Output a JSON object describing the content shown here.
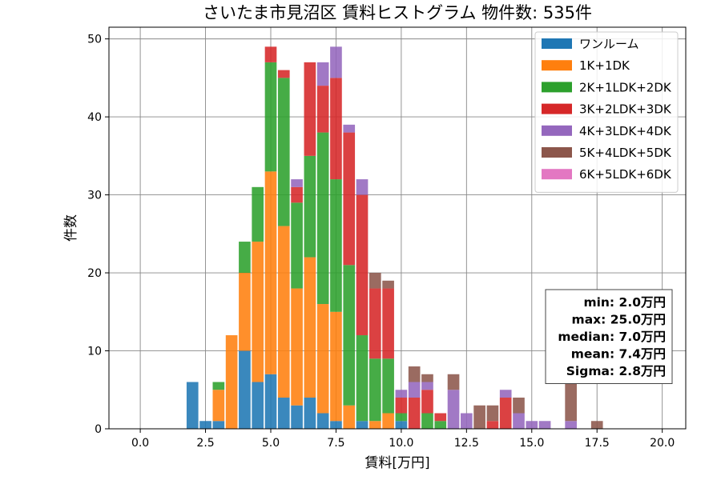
{
  "chart_data": {
    "type": "bar",
    "stacked": true,
    "title": "さいたま市見沼区 賃料ヒストグラム 物件数: 535件",
    "xlabel": "賃料[万円]",
    "ylabel": "件数",
    "xlim": [
      -1.2,
      20.9
    ],
    "ylim": [
      0,
      51.5
    ],
    "x_ticks": [
      0,
      2.5,
      5,
      7.5,
      10,
      12.5,
      15,
      17.5,
      20
    ],
    "x_tick_labels": [
      "0.0",
      "2.5",
      "5.0",
      "7.5",
      "10.0",
      "12.5",
      "15.0",
      "17.5",
      "20.0"
    ],
    "y_ticks": [
      0,
      10,
      20,
      30,
      40,
      50
    ],
    "y_tick_labels": [
      "0",
      "10",
      "20",
      "30",
      "40",
      "50"
    ],
    "grid": true,
    "legend_position": "top-right",
    "bin_width": 0.5,
    "x": [
      2.0,
      2.5,
      3.0,
      3.5,
      4.0,
      4.5,
      5.0,
      5.5,
      6.0,
      6.5,
      7.0,
      7.5,
      8.0,
      8.5,
      9.0,
      9.5,
      10.0,
      10.5,
      11.0,
      11.5,
      12.0,
      12.5,
      13.0,
      13.5,
      14.0,
      14.5,
      15.0,
      15.5,
      16.0,
      16.5,
      17.0,
      17.5
    ],
    "series": [
      {
        "name": "ワンルーム",
        "color": "#1f77b4",
        "values": [
          6,
          1,
          1,
          0,
          10,
          6,
          7,
          4,
          3,
          4,
          2,
          1,
          0,
          1,
          0,
          0,
          1,
          0,
          0,
          0,
          0,
          0,
          0,
          0,
          0,
          0,
          0,
          0,
          0,
          0,
          0,
          0
        ]
      },
      {
        "name": "1K+1DK",
        "color": "#ff7f0e",
        "values": [
          0,
          0,
          4,
          12,
          10,
          18,
          26,
          22,
          15,
          18,
          14,
          14,
          3,
          0,
          1,
          2,
          0,
          0,
          0,
          0,
          0,
          0,
          0,
          0,
          0,
          0,
          0,
          0,
          0,
          0,
          0,
          0
        ]
      },
      {
        "name": "2K+1LDK+2DK",
        "color": "#2ca02c",
        "values": [
          0,
          0,
          1,
          0,
          4,
          7,
          14,
          19,
          11,
          13,
          22,
          17,
          18,
          11,
          8,
          7,
          1,
          0,
          2,
          1,
          0,
          0,
          0,
          0,
          0,
          0,
          0,
          0,
          0,
          0,
          0,
          0
        ]
      },
      {
        "name": "3K+2LDK+3DK",
        "color": "#d62728",
        "values": [
          0,
          0,
          0,
          0,
          0,
          0,
          2,
          1,
          2,
          12,
          6,
          13,
          17,
          18,
          9,
          9,
          2,
          4,
          3,
          1,
          0,
          0,
          0,
          1,
          4,
          0,
          0,
          0,
          0,
          0,
          0,
          0
        ]
      },
      {
        "name": "4K+3LDK+4DK",
        "color": "#9467bd",
        "values": [
          0,
          0,
          0,
          0,
          0,
          0,
          0,
          0,
          1,
          0,
          3,
          4,
          1,
          2,
          0,
          0,
          1,
          2,
          1,
          0,
          5,
          2,
          0,
          0,
          1,
          2,
          1,
          1,
          0,
          1,
          0,
          0
        ]
      },
      {
        "name": "5K+4LDK+5DK",
        "color": "#8c564b",
        "values": [
          0,
          0,
          0,
          0,
          0,
          0,
          0,
          0,
          0,
          0,
          0,
          0,
          0,
          0,
          2,
          1,
          0,
          2,
          1,
          0,
          2,
          0,
          3,
          2,
          0,
          2,
          0,
          0,
          0,
          5,
          0,
          1
        ]
      },
      {
        "name": "6K+5LDK+6DK",
        "color": "#e377c2",
        "values": [
          0,
          0,
          0,
          0,
          0,
          0,
          0,
          0,
          0,
          0,
          0,
          0,
          0,
          0,
          0,
          0,
          0,
          0,
          0,
          0,
          0,
          0,
          0,
          0,
          0,
          0,
          0,
          0,
          0,
          0,
          0,
          0
        ]
      }
    ],
    "stats_box": {
      "position": "lower-right",
      "lines": [
        "min: 2.0万円",
        "max: 25.0万円",
        "median: 7.0万円",
        "mean: 7.4万円",
        "Sigma: 2.8万円"
      ]
    }
  }
}
